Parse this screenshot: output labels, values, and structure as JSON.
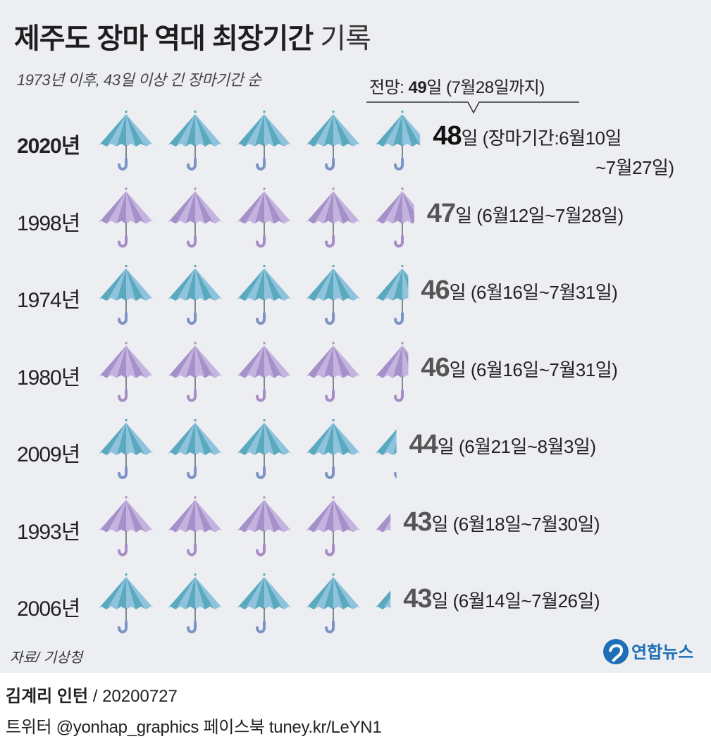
{
  "title_bold": "제주도 장마 역대 최장기간",
  "title_normal": "기록",
  "subtitle": "1973년 이후, 43일 이상 긴 장마기간 순",
  "forecast": {
    "prefix": "전망: ",
    "days": "49",
    "suffix": "일 (7월28일까지)"
  },
  "source": "자료/ 기상청",
  "brand": "연합뉴스",
  "credit": {
    "name": "김계리 인턴",
    "date": " / 20200727"
  },
  "sns": "트위터 @yonhap_graphics  페이스북 tuney.kr/LeYN1",
  "colors": {
    "teal": "#5aa9bf",
    "teal_light": "#8fc3dd",
    "purple": "#a690c9",
    "purple_light": "#c4b3de",
    "handle_teal": "#7b93c6",
    "handle_purple": "#a88cc7"
  },
  "chart_data": {
    "type": "bar",
    "unit_per_icon": 10,
    "categories": [
      "2020년",
      "1998년",
      "1974년",
      "1980년",
      "2009년",
      "1993년",
      "2006년"
    ],
    "values": [
      48,
      47,
      46,
      46,
      44,
      43,
      43
    ],
    "period_labels": [
      "(장마기간:6월10일",
      "(6월12일~7월28일)",
      "(6월16일~7월31일)",
      "(6월16일~7월31일)",
      "(6월21일~8월3일)",
      "(6월18일~7월30일)",
      "(6월14일~7월26일)"
    ],
    "period_label_line2": [
      "~7월27일)",
      "",
      "",
      "",
      "",
      "",
      ""
    ],
    "day_unit": "일",
    "forecast_value": 49
  }
}
